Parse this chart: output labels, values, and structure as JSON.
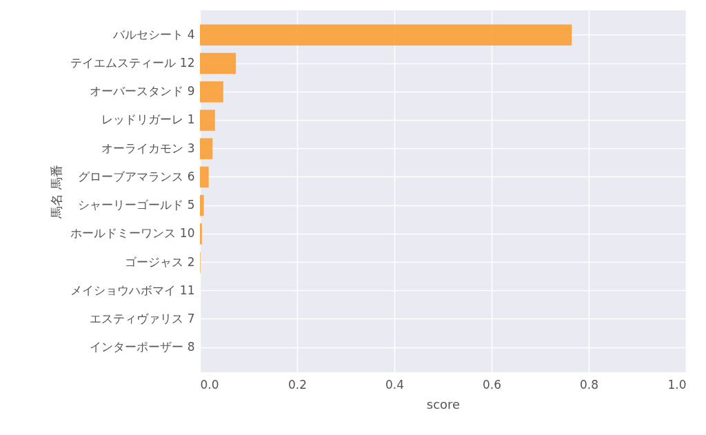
{
  "chart_data": {
    "type": "bar",
    "orientation": "horizontal",
    "xlabel": "score",
    "ylabel": "馬名 馬番",
    "categories": [
      "バルセシート 4",
      "テイエムスティール 12",
      "オーバースタンド 9",
      "レッドリガーレ 1",
      "オーライカモン 3",
      "グローブアマランス 6",
      "シャーリーゴールド 5",
      "ホールドミーワンス 10",
      "ゴージャス 2",
      "メイショウハボマイ 11",
      "エスティヴァリス 7",
      "インターポーザー 8"
    ],
    "values": [
      0.765,
      0.074,
      0.048,
      0.031,
      0.026,
      0.018,
      0.008,
      0.004,
      0.001,
      0,
      0,
      0
    ],
    "color": "#fa9f34",
    "xlim": [
      0,
      1
    ],
    "xticks": [
      {
        "value": 0,
        "label": "0.0"
      },
      0.2,
      0.4,
      0.6,
      0.8,
      {
        "value": 1,
        "label": "1.0"
      }
    ],
    "grid": true
  }
}
